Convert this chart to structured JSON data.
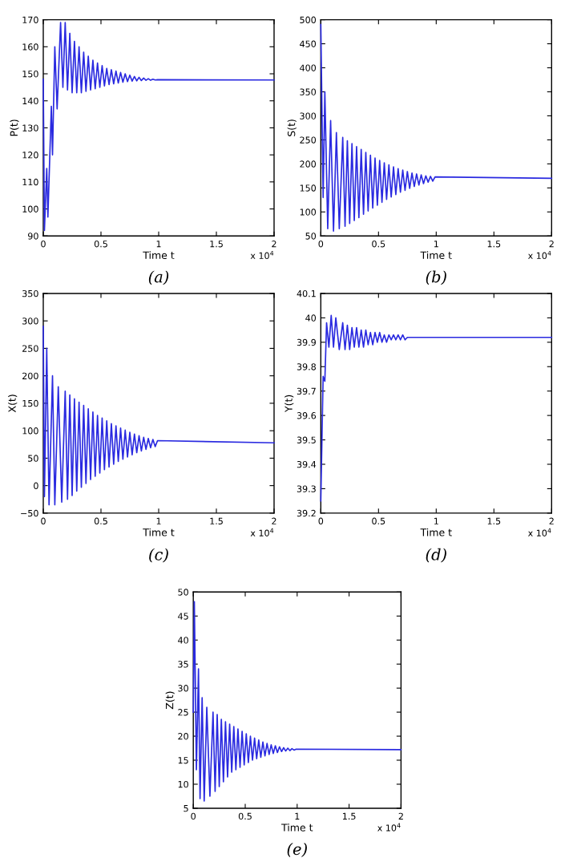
{
  "chart_data": [
    {
      "type": "line",
      "xlabel": "Time t",
      "ylabel": "P(t)",
      "annotations": [
        "x 10$^{4}$",
        "(a)"
      ],
      "xlim": [
        0,
        2
      ],
      "xticks": [
        0,
        0.5,
        1,
        1.5,
        2
      ],
      "ylim": [
        90,
        170
      ],
      "yticks": [
        90,
        100,
        110,
        120,
        130,
        140,
        150,
        160,
        170
      ],
      "grid": false,
      "series": [
        {
          "color": "#2a2ae0",
          "x": [
            0,
            0.01,
            0.03,
            0.04,
            0.07,
            0.08,
            0.1,
            0.12,
            0.15,
            0.17,
            0.19,
            0.21,
            0.23,
            0.25,
            0.27,
            0.29,
            0.31,
            0.33,
            0.35,
            0.37,
            0.39,
            0.41,
            0.43,
            0.45,
            0.47,
            0.49,
            0.51,
            0.53,
            0.55,
            0.57,
            0.59,
            0.61,
            0.63,
            0.65,
            0.67,
            0.69,
            0.71,
            0.73,
            0.75,
            0.77,
            0.79,
            0.81,
            0.83,
            0.85,
            0.87,
            0.89,
            0.91,
            0.93,
            0.95,
            0.97,
            0.99,
            2
          ],
          "values": [
            148,
            92,
            115,
            97,
            138,
            120,
            160,
            137,
            169,
            145,
            169,
            144,
            165,
            143,
            162,
            143,
            160,
            143,
            158,
            143.5,
            156.5,
            144,
            155,
            144.5,
            154,
            145,
            153,
            145.5,
            152,
            146,
            151.5,
            146.3,
            151,
            146.6,
            150.5,
            146.9,
            150,
            147.1,
            149.5,
            147.3,
            149,
            147.4,
            148.7,
            147.5,
            148.4,
            147.6,
            148.2,
            147.6,
            148,
            147.7,
            147.8,
            147.7
          ]
        }
      ]
    },
    {
      "type": "line",
      "xlabel": "Time t",
      "ylabel": "S(t)",
      "annotations": [
        "x 10$^{4}$",
        "(b)"
      ],
      "xlim": [
        0,
        2
      ],
      "xticks": [
        0,
        0.5,
        1,
        1.5,
        2
      ],
      "ylim": [
        50,
        500
      ],
      "yticks": [
        50,
        100,
        150,
        200,
        250,
        300,
        350,
        400,
        450,
        500
      ],
      "grid": false,
      "series": [
        {
          "color": "#2a2ae0",
          "x": [
            0,
            0.02,
            0.035,
            0.06,
            0.085,
            0.11,
            0.135,
            0.16,
            0.19,
            0.21,
            0.23,
            0.25,
            0.27,
            0.29,
            0.31,
            0.33,
            0.35,
            0.37,
            0.39,
            0.41,
            0.43,
            0.45,
            0.47,
            0.49,
            0.51,
            0.53,
            0.55,
            0.57,
            0.59,
            0.61,
            0.63,
            0.65,
            0.67,
            0.69,
            0.71,
            0.73,
            0.75,
            0.77,
            0.79,
            0.81,
            0.83,
            0.85,
            0.87,
            0.89,
            0.91,
            0.93,
            0.95,
            0.97,
            0.99,
            2
          ],
          "values": [
            490,
            130,
            350,
            65,
            290,
            60,
            265,
            65,
            255,
            70,
            248,
            76,
            242,
            82,
            236,
            88,
            230,
            95,
            224,
            102,
            218,
            108,
            212,
            114,
            207,
            120,
            202,
            126,
            198,
            131,
            194,
            136,
            190,
            141,
            187,
            145,
            184,
            149,
            181,
            153,
            179,
            156,
            177,
            159,
            175,
            162,
            174,
            164,
            173,
            170
          ]
        }
      ]
    },
    {
      "type": "line",
      "xlabel": "Time t",
      "ylabel": "X(t)",
      "annotations": [
        "x 10$^{4}$",
        "(c)"
      ],
      "xlim": [
        0,
        2
      ],
      "xticks": [
        0,
        0.5,
        1,
        1.5,
        2
      ],
      "ylim": [
        -50,
        350
      ],
      "yticks": [
        {
          "value": -50,
          "label": "−50"
        },
        0,
        50,
        100,
        150,
        200,
        250,
        300,
        350
      ],
      "grid": false,
      "series": [
        {
          "color": "#2a2ae0",
          "x": [
            0,
            0.01,
            0.03,
            0.05,
            0.08,
            0.1,
            0.13,
            0.16,
            0.19,
            0.21,
            0.23,
            0.25,
            0.27,
            0.29,
            0.31,
            0.33,
            0.35,
            0.37,
            0.39,
            0.41,
            0.43,
            0.45,
            0.47,
            0.49,
            0.51,
            0.53,
            0.55,
            0.57,
            0.59,
            0.61,
            0.63,
            0.65,
            0.67,
            0.69,
            0.71,
            0.73,
            0.75,
            0.77,
            0.79,
            0.81,
            0.83,
            0.85,
            0.87,
            0.89,
            0.91,
            0.93,
            0.95,
            0.97,
            0.99,
            2
          ],
          "values": [
            290,
            -20,
            250,
            -35,
            200,
            -35,
            180,
            -30,
            172,
            -25,
            165,
            -18,
            158,
            -10,
            152,
            -3,
            146,
            4,
            140,
            11,
            134,
            17,
            128,
            23,
            123,
            29,
            118,
            34,
            113,
            39,
            109,
            44,
            105,
            48,
            101,
            52,
            97,
            56,
            94,
            60,
            91,
            63,
            88,
            66,
            86,
            69,
            84,
            71,
            82,
            78
          ]
        }
      ]
    },
    {
      "type": "line",
      "xlabel": "Time t",
      "ylabel": "Y(t)",
      "annotations": [
        "x 10$^{4}$",
        "(d)"
      ],
      "xlim": [
        0,
        2
      ],
      "xticks": [
        0,
        0.5,
        1,
        1.5,
        2
      ],
      "ylim": [
        39.2,
        40.1
      ],
      "yticks": [
        39.2,
        39.3,
        39.4,
        39.5,
        39.6,
        39.7,
        39.8,
        39.9,
        40,
        40.1
      ],
      "grid": false,
      "series": [
        {
          "color": "#2a2ae0",
          "x": [
            0,
            0.02,
            0.035,
            0.05,
            0.07,
            0.09,
            0.11,
            0.13,
            0.16,
            0.19,
            0.21,
            0.23,
            0.25,
            0.27,
            0.29,
            0.31,
            0.33,
            0.35,
            0.37,
            0.39,
            0.41,
            0.43,
            0.45,
            0.47,
            0.49,
            0.51,
            0.53,
            0.55,
            0.57,
            0.59,
            0.61,
            0.63,
            0.65,
            0.67,
            0.69,
            0.71,
            0.73,
            0.75,
            0.77,
            0.79,
            0.81,
            0.83,
            0.85,
            0.87,
            0.89,
            0.91,
            0.93,
            0.95,
            0.97,
            0.99,
            2
          ],
          "values": [
            39.25,
            39.76,
            39.74,
            39.98,
            39.88,
            40.01,
            39.88,
            40.0,
            39.87,
            39.98,
            39.87,
            39.97,
            39.87,
            39.96,
            39.88,
            39.96,
            39.88,
            39.95,
            39.88,
            39.95,
            39.89,
            39.94,
            39.89,
            39.94,
            39.9,
            39.94,
            39.9,
            39.93,
            39.9,
            39.93,
            39.91,
            39.93,
            39.91,
            39.93,
            39.91,
            39.93,
            39.91,
            39.92,
            39.92,
            39.92,
            39.92,
            39.92,
            39.92,
            39.92,
            39.92,
            39.92,
            39.92,
            39.92,
            39.92,
            39.92,
            39.92
          ]
        }
      ]
    },
    {
      "type": "line",
      "xlabel": "Time t",
      "ylabel": "Z(t)",
      "annotations": [
        "x 10$^{4}$",
        "(e)"
      ],
      "xlim": [
        0,
        2
      ],
      "xticks": [
        0,
        0.5,
        1,
        1.5,
        2
      ],
      "ylim": [
        5,
        50
      ],
      "yticks": [
        5,
        10,
        15,
        20,
        25,
        30,
        35,
        40,
        45,
        50
      ],
      "grid": false,
      "series": [
        {
          "color": "#2a2ae0",
          "x": [
            0,
            0.01,
            0.03,
            0.05,
            0.065,
            0.085,
            0.105,
            0.13,
            0.16,
            0.19,
            0.21,
            0.23,
            0.25,
            0.27,
            0.29,
            0.31,
            0.33,
            0.35,
            0.37,
            0.39,
            0.41,
            0.43,
            0.45,
            0.47,
            0.49,
            0.51,
            0.53,
            0.55,
            0.57,
            0.59,
            0.61,
            0.63,
            0.65,
            0.67,
            0.69,
            0.71,
            0.73,
            0.75,
            0.77,
            0.79,
            0.81,
            0.83,
            0.85,
            0.87,
            0.89,
            0.91,
            0.93,
            0.95,
            0.97,
            0.99,
            2
          ],
          "values": [
            25,
            48,
            13,
            34,
            7,
            28,
            6.5,
            26,
            7.5,
            25,
            8.5,
            24.5,
            9.5,
            23.5,
            10.5,
            23,
            11.5,
            22.5,
            12.5,
            22,
            13,
            21.5,
            13.5,
            21,
            14,
            20.5,
            14.5,
            20,
            15,
            19.6,
            15.3,
            19.2,
            15.6,
            18.8,
            15.9,
            18.5,
            16.2,
            18.2,
            16.4,
            18,
            16.6,
            17.8,
            16.8,
            17.6,
            16.9,
            17.5,
            17,
            17.4,
            17.1,
            17.3,
            17.2
          ]
        }
      ]
    }
  ]
}
